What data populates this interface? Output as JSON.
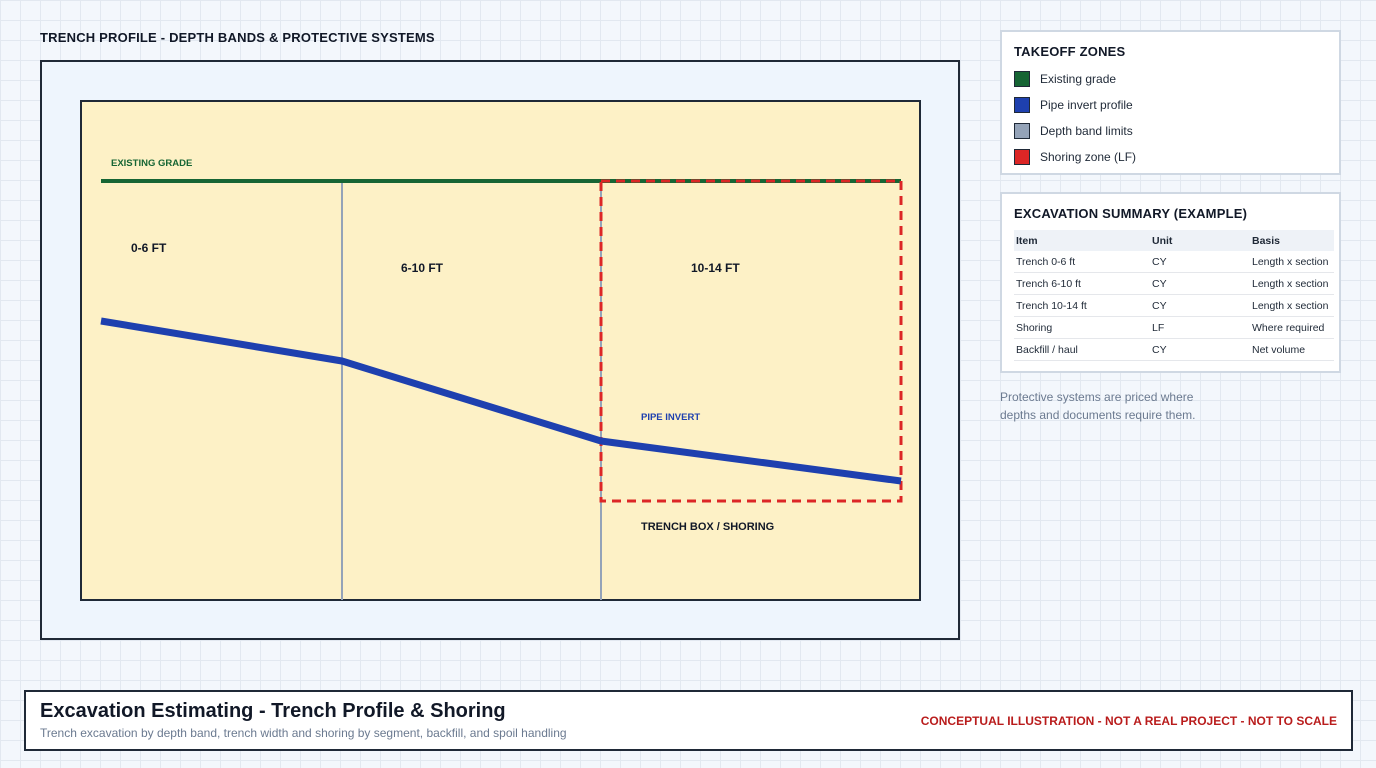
{
  "profile": {
    "title": "TRENCH PROFILE - DEPTH BANDS & PROTECTIVE SYSTEMS",
    "labels": {
      "existing_grade": "EXISTING GRADE",
      "band_1": "0-6 FT",
      "band_2": "6-10 FT",
      "band_3": "10-14 FT",
      "pipe_invert": "PIPE INVERT",
      "trench_box": "TRENCH BOX / SHORING"
    },
    "colors": {
      "grade": "#166534",
      "pipe": "#1e40af",
      "band_limit": "#94a3b8",
      "shoring": "#dc2626",
      "soil": "#fdf1c6"
    }
  },
  "legend": {
    "title": "TAKEOFF ZONES",
    "items": [
      {
        "label": "Existing grade",
        "color": "#166534"
      },
      {
        "label": "Pipe invert profile",
        "color": "#1e40af"
      },
      {
        "label": "Depth band limits",
        "color": "#94a3b8"
      },
      {
        "label": "Shoring zone (LF)",
        "color": "#dc2626"
      }
    ]
  },
  "summary": {
    "title": "EXCAVATION SUMMARY (EXAMPLE)",
    "headers": [
      "Item",
      "Unit",
      "Basis"
    ],
    "rows": [
      [
        "Trench 0-6 ft",
        "CY",
        "Length x section"
      ],
      [
        "Trench 6-10 ft",
        "CY",
        "Length x section"
      ],
      [
        "Trench 10-14 ft",
        "CY",
        "Length x section"
      ],
      [
        "Shoring",
        "LF",
        "Where required"
      ],
      [
        "Backfill / haul",
        "CY",
        "Net volume"
      ]
    ]
  },
  "note": "Protective systems are priced where depths and documents require them.",
  "footer": {
    "title": "Excavation Estimating - Trench Profile & Shoring",
    "subtitle": "Trench excavation by depth band, trench width and shoring by segment, backfill, and spoil handling",
    "disclaimer": "CONCEPTUAL ILLUSTRATION - NOT A REAL PROJECT - NOT TO SCALE"
  }
}
